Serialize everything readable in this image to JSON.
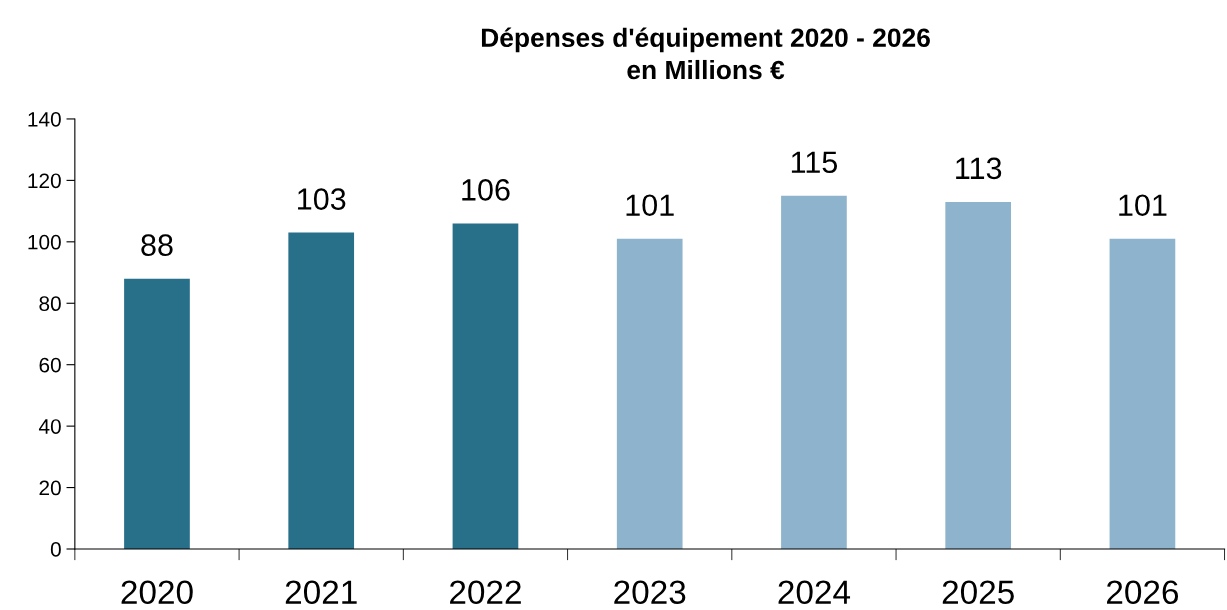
{
  "chart_data": {
    "type": "bar",
    "title": "Dépenses d'équipement 2020 - 2026\nen Millions €",
    "categories": [
      "2020",
      "2021",
      "2022",
      "2023",
      "2024",
      "2025",
      "2026"
    ],
    "values": [
      88,
      103,
      106,
      101,
      115,
      113,
      101
    ],
    "colors": [
      "#286f8a",
      "#286f8a",
      "#286f8a",
      "#8db4cc",
      "#8db4cc",
      "#8db4cc",
      "#8db4cc"
    ],
    "ylim": [
      0,
      140
    ],
    "yticks": [
      0,
      20,
      40,
      60,
      80,
      100,
      120,
      140
    ],
    "grid": false,
    "data_labels": true
  }
}
